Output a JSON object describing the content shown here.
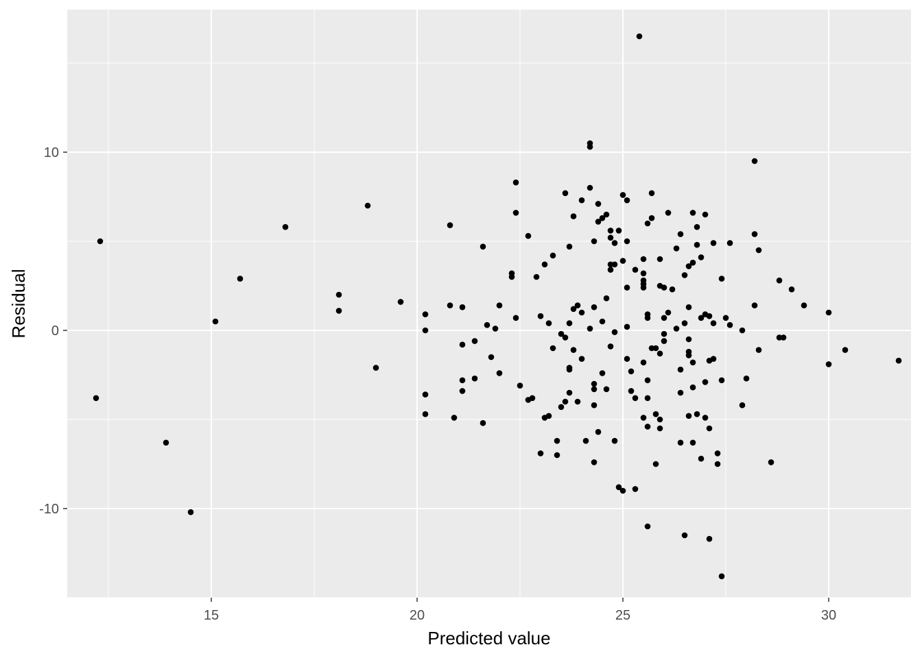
{
  "chart_data": {
    "type": "scatter",
    "title": "",
    "xlabel": "Predicted value",
    "ylabel": "Residual",
    "xlim": [
      11.5,
      32.0
    ],
    "ylim": [
      -15.0,
      18.0
    ],
    "x_ticks": [
      15,
      20,
      25,
      30
    ],
    "y_ticks": [
      -10,
      0,
      10
    ],
    "x_tick_labels": [
      "15",
      "20",
      "25",
      "30"
    ],
    "y_tick_labels": [
      "-10",
      "0",
      "10"
    ],
    "grid": true,
    "legend": "none",
    "colors": {
      "panel": "#ebebeb",
      "grid": "#ffffff",
      "point": "#000000",
      "tick_text": "#4d4d4d",
      "axis_title": "#000000"
    },
    "series": [
      {
        "points": [
          [
            12.3,
            5.0
          ],
          [
            12.2,
            -3.8
          ],
          [
            13.9,
            -6.3
          ],
          [
            14.5,
            -10.2
          ],
          [
            15.1,
            0.5
          ],
          [
            15.7,
            2.9
          ],
          [
            16.8,
            5.8
          ],
          [
            18.1,
            2.0
          ],
          [
            18.1,
            1.1
          ],
          [
            18.8,
            7.0
          ],
          [
            19.0,
            -2.1
          ],
          [
            19.6,
            1.6
          ],
          [
            20.2,
            0.9
          ],
          [
            20.2,
            0.0
          ],
          [
            20.2,
            -3.6
          ],
          [
            20.2,
            -4.7
          ],
          [
            20.8,
            1.4
          ],
          [
            20.8,
            5.9
          ],
          [
            20.9,
            -4.9
          ],
          [
            21.1,
            1.3
          ],
          [
            21.1,
            -0.8
          ],
          [
            21.1,
            -2.8
          ],
          [
            21.1,
            -3.4
          ],
          [
            21.4,
            -0.6
          ],
          [
            21.4,
            -2.7
          ],
          [
            21.6,
            4.7
          ],
          [
            21.6,
            -5.2
          ],
          [
            21.7,
            0.3
          ],
          [
            21.8,
            -1.5
          ],
          [
            21.9,
            0.1
          ],
          [
            22.0,
            1.4
          ],
          [
            22.0,
            -2.4
          ],
          [
            22.3,
            3.0
          ],
          [
            22.3,
            3.2
          ],
          [
            22.4,
            8.3
          ],
          [
            22.4,
            6.6
          ],
          [
            22.4,
            0.7
          ],
          [
            22.5,
            -3.1
          ],
          [
            22.7,
            5.3
          ],
          [
            22.7,
            -3.9
          ],
          [
            22.8,
            -3.8
          ],
          [
            22.9,
            3.0
          ],
          [
            23.0,
            0.8
          ],
          [
            23.0,
            -6.9
          ],
          [
            23.1,
            -4.9
          ],
          [
            23.1,
            3.7
          ],
          [
            23.2,
            0.4
          ],
          [
            23.2,
            -4.8
          ],
          [
            23.3,
            -1.0
          ],
          [
            23.3,
            4.2
          ],
          [
            23.4,
            -6.2
          ],
          [
            23.4,
            -7.0
          ],
          [
            23.5,
            -4.3
          ],
          [
            23.5,
            -0.2
          ],
          [
            23.6,
            -4.0
          ],
          [
            23.6,
            -0.4
          ],
          [
            23.6,
            7.7
          ],
          [
            23.7,
            -2.1
          ],
          [
            23.7,
            -2.2
          ],
          [
            23.7,
            -3.5
          ],
          [
            23.7,
            4.7
          ],
          [
            23.7,
            0.4
          ],
          [
            23.8,
            -1.1
          ],
          [
            23.8,
            6.4
          ],
          [
            23.8,
            1.2
          ],
          [
            23.9,
            -4.0
          ],
          [
            23.9,
            1.4
          ],
          [
            24.0,
            1.0
          ],
          [
            24.0,
            7.3
          ],
          [
            24.0,
            -1.6
          ],
          [
            24.1,
            -6.2
          ],
          [
            24.2,
            10.3
          ],
          [
            24.2,
            10.5
          ],
          [
            24.2,
            8.0
          ],
          [
            24.2,
            0.1
          ],
          [
            24.3,
            5.0
          ],
          [
            24.3,
            1.3
          ],
          [
            24.3,
            -3.0
          ],
          [
            24.3,
            -3.3
          ],
          [
            24.3,
            -4.2
          ],
          [
            24.3,
            -7.4
          ],
          [
            24.4,
            7.1
          ],
          [
            24.4,
            6.1
          ],
          [
            24.4,
            -5.7
          ],
          [
            24.5,
            6.3
          ],
          [
            24.5,
            -2.4
          ],
          [
            24.5,
            0.5
          ],
          [
            24.6,
            6.5
          ],
          [
            24.6,
            1.8
          ],
          [
            24.6,
            -3.3
          ],
          [
            24.7,
            5.6
          ],
          [
            24.7,
            5.2
          ],
          [
            24.7,
            3.7
          ],
          [
            24.7,
            3.4
          ],
          [
            24.7,
            -0.9
          ],
          [
            24.8,
            3.7
          ],
          [
            24.8,
            4.9
          ],
          [
            24.8,
            -0.1
          ],
          [
            24.8,
            -6.2
          ],
          [
            24.9,
            5.6
          ],
          [
            24.9,
            -8.8
          ],
          [
            25.0,
            7.6
          ],
          [
            25.0,
            3.9
          ],
          [
            25.0,
            -9.0
          ],
          [
            25.1,
            7.3
          ],
          [
            25.1,
            5.0
          ],
          [
            25.1,
            2.4
          ],
          [
            25.1,
            0.2
          ],
          [
            25.1,
            -1.6
          ],
          [
            25.2,
            -2.3
          ],
          [
            25.2,
            -3.4
          ],
          [
            25.3,
            3.4
          ],
          [
            25.3,
            -3.8
          ],
          [
            25.3,
            -8.9
          ],
          [
            25.4,
            16.5
          ],
          [
            25.5,
            4.0
          ],
          [
            25.5,
            3.2
          ],
          [
            25.5,
            2.8
          ],
          [
            25.5,
            2.6
          ],
          [
            25.5,
            2.4
          ],
          [
            25.5,
            -1.8
          ],
          [
            25.5,
            -4.9
          ],
          [
            25.6,
            6.0
          ],
          [
            25.6,
            0.9
          ],
          [
            25.6,
            0.7
          ],
          [
            25.6,
            -2.8
          ],
          [
            25.6,
            -3.8
          ],
          [
            25.6,
            -5.4
          ],
          [
            25.6,
            -11.0
          ],
          [
            25.7,
            7.7
          ],
          [
            25.7,
            6.3
          ],
          [
            25.7,
            -1.0
          ],
          [
            25.8,
            -4.7
          ],
          [
            25.8,
            -1.0
          ],
          [
            25.8,
            -7.5
          ],
          [
            25.9,
            4.0
          ],
          [
            25.9,
            2.5
          ],
          [
            25.9,
            -5.0
          ],
          [
            25.9,
            -5.5
          ],
          [
            25.9,
            -1.3
          ],
          [
            26.0,
            2.4
          ],
          [
            26.0,
            0.7
          ],
          [
            26.0,
            -0.6
          ],
          [
            26.0,
            -0.2
          ],
          [
            26.1,
            6.6
          ],
          [
            26.1,
            1.0
          ],
          [
            26.2,
            2.3
          ],
          [
            26.3,
            4.6
          ],
          [
            26.3,
            0.1
          ],
          [
            26.4,
            5.4
          ],
          [
            26.4,
            -2.2
          ],
          [
            26.4,
            -3.5
          ],
          [
            26.4,
            -6.3
          ],
          [
            26.5,
            -11.5
          ],
          [
            26.5,
            3.1
          ],
          [
            26.5,
            0.4
          ],
          [
            26.6,
            3.6
          ],
          [
            26.6,
            -0.5
          ],
          [
            26.6,
            -1.2
          ],
          [
            26.6,
            -1.4
          ],
          [
            26.6,
            1.3
          ],
          [
            26.6,
            -4.8
          ],
          [
            26.7,
            6.6
          ],
          [
            26.7,
            3.8
          ],
          [
            26.7,
            -1.8
          ],
          [
            26.7,
            -3.2
          ],
          [
            26.7,
            -6.3
          ],
          [
            26.8,
            5.8
          ],
          [
            26.8,
            4.8
          ],
          [
            26.8,
            -4.7
          ],
          [
            26.9,
            4.1
          ],
          [
            26.9,
            0.7
          ],
          [
            26.9,
            -7.2
          ],
          [
            27.0,
            6.5
          ],
          [
            27.0,
            0.9
          ],
          [
            27.0,
            -2.9
          ],
          [
            27.0,
            -4.9
          ],
          [
            27.1,
            0.8
          ],
          [
            27.1,
            -1.7
          ],
          [
            27.1,
            -5.5
          ],
          [
            27.1,
            -11.7
          ],
          [
            27.2,
            4.9
          ],
          [
            27.2,
            0.4
          ],
          [
            27.2,
            -1.6
          ],
          [
            27.3,
            -6.9
          ],
          [
            27.3,
            -7.5
          ],
          [
            27.4,
            2.9
          ],
          [
            27.4,
            -2.8
          ],
          [
            27.4,
            -13.8
          ],
          [
            27.5,
            0.7
          ],
          [
            27.6,
            0.3
          ],
          [
            27.6,
            4.9
          ],
          [
            27.9,
            -4.2
          ],
          [
            27.9,
            0.0
          ],
          [
            28.0,
            -2.7
          ],
          [
            28.2,
            9.5
          ],
          [
            28.2,
            1.4
          ],
          [
            28.2,
            5.4
          ],
          [
            28.3,
            -1.1
          ],
          [
            28.3,
            4.5
          ],
          [
            28.6,
            -7.4
          ],
          [
            28.8,
            2.8
          ],
          [
            28.8,
            -0.4
          ],
          [
            28.9,
            -0.4
          ],
          [
            29.1,
            2.3
          ],
          [
            29.4,
            1.4
          ],
          [
            30.0,
            1.0
          ],
          [
            30.0,
            -1.9
          ],
          [
            30.4,
            -1.1
          ],
          [
            31.7,
            -1.7
          ]
        ]
      }
    ]
  }
}
